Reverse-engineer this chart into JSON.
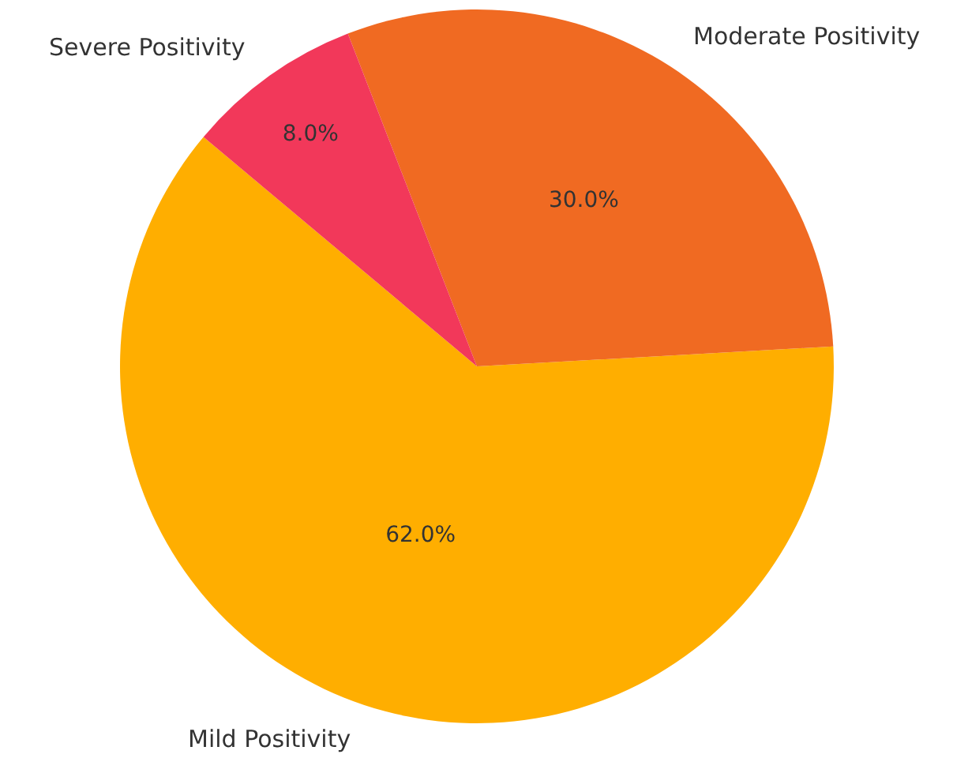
{
  "chart_data": {
    "type": "pie",
    "categories": [
      "Mild Positivity",
      "Moderate Positivity",
      "Severe Positivity"
    ],
    "values": [
      62,
      30,
      8
    ],
    "colors": [
      "#ffae00",
      "#f06a22",
      "#f2385a"
    ],
    "value_labels": [
      "62.0%",
      "30.0%",
      "8.0%"
    ]
  }
}
